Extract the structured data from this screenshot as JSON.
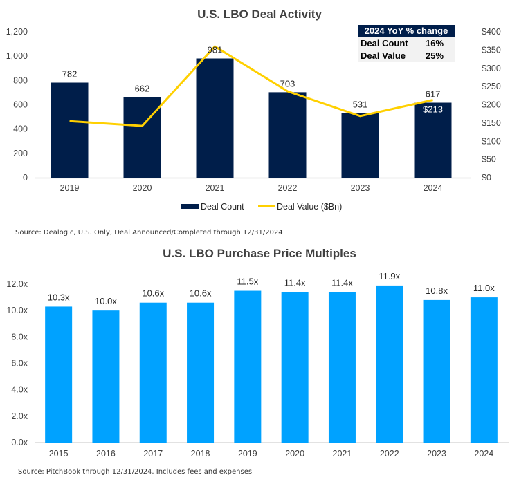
{
  "chart_data": [
    {
      "type": "bar",
      "title": "U.S. LBO Deal Activity",
      "categories": [
        "2019",
        "2020",
        "2021",
        "2022",
        "2023",
        "2024"
      ],
      "series": [
        {
          "name": "Deal Count",
          "type": "bar",
          "axis": "left",
          "color": "#001e4a",
          "values": [
            782,
            662,
            981,
            703,
            531,
            617
          ],
          "labels": [
            "782",
            "662",
            "981",
            "703",
            "531",
            "617"
          ]
        },
        {
          "name": "Deal Value ($Bn)",
          "type": "line",
          "axis": "right",
          "color": "#ffd000",
          "values": [
            155,
            142,
            360,
            237,
            169,
            213
          ],
          "labels": [
            "",
            "",
            "",
            "",
            "",
            "$213"
          ]
        }
      ],
      "y_left": {
        "range": [
          0,
          1200
        ],
        "ticks": [
          0,
          200,
          400,
          600,
          800,
          1000,
          1200
        ],
        "tick_labels": [
          "0",
          "200",
          "400",
          "600",
          "800",
          "1,000",
          "1,200"
        ]
      },
      "y_right": {
        "range": [
          0,
          400
        ],
        "ticks": [
          0,
          50,
          100,
          150,
          200,
          250,
          300,
          350,
          400
        ],
        "tick_labels": [
          "$0",
          "$50",
          "$100",
          "$150",
          "$200",
          "$250",
          "$300",
          "$350",
          "$400"
        ]
      },
      "legend": {
        "placement": "bottom",
        "entries": [
          "Deal Count",
          "Deal Value ($Bn)"
        ]
      },
      "grid": false,
      "annotation_table": {
        "header": "2024 YoY % change",
        "rows": [
          {
            "label": "Deal Count",
            "value": "16%"
          },
          {
            "label": "Deal Value",
            "value": "25%"
          }
        ]
      },
      "source": "Source: Dealogic, U.S. Only, Deal Announced/Completed through 12/31/2024"
    },
    {
      "type": "bar",
      "title": "U.S. LBO Purchase Price Multiples",
      "categories": [
        "2015",
        "2016",
        "2017",
        "2018",
        "2019",
        "2020",
        "2021",
        "2022",
        "2023",
        "2024"
      ],
      "series": [
        {
          "name": "Purchase Price Multiple",
          "color": "#00a2ff",
          "values": [
            10.3,
            10.0,
            10.6,
            10.6,
            11.5,
            11.4,
            11.4,
            11.9,
            10.8,
            11.0
          ],
          "labels": [
            "10.3x",
            "10.0x",
            "10.6x",
            "10.6x",
            "11.5x",
            "11.4x",
            "11.4x",
            "11.9x",
            "10.8x",
            "11.0x"
          ]
        }
      ],
      "y": {
        "range": [
          0,
          12
        ],
        "ticks": [
          0,
          2,
          4,
          6,
          8,
          10,
          12
        ],
        "tick_labels": [
          "0.0x",
          "2.0x",
          "4.0x",
          "6.0x",
          "8.0x",
          "10.0x",
          "12.0x"
        ]
      },
      "grid": false,
      "source": "Source: PitchBook through 12/31/2024. Includes fees and expenses"
    }
  ]
}
